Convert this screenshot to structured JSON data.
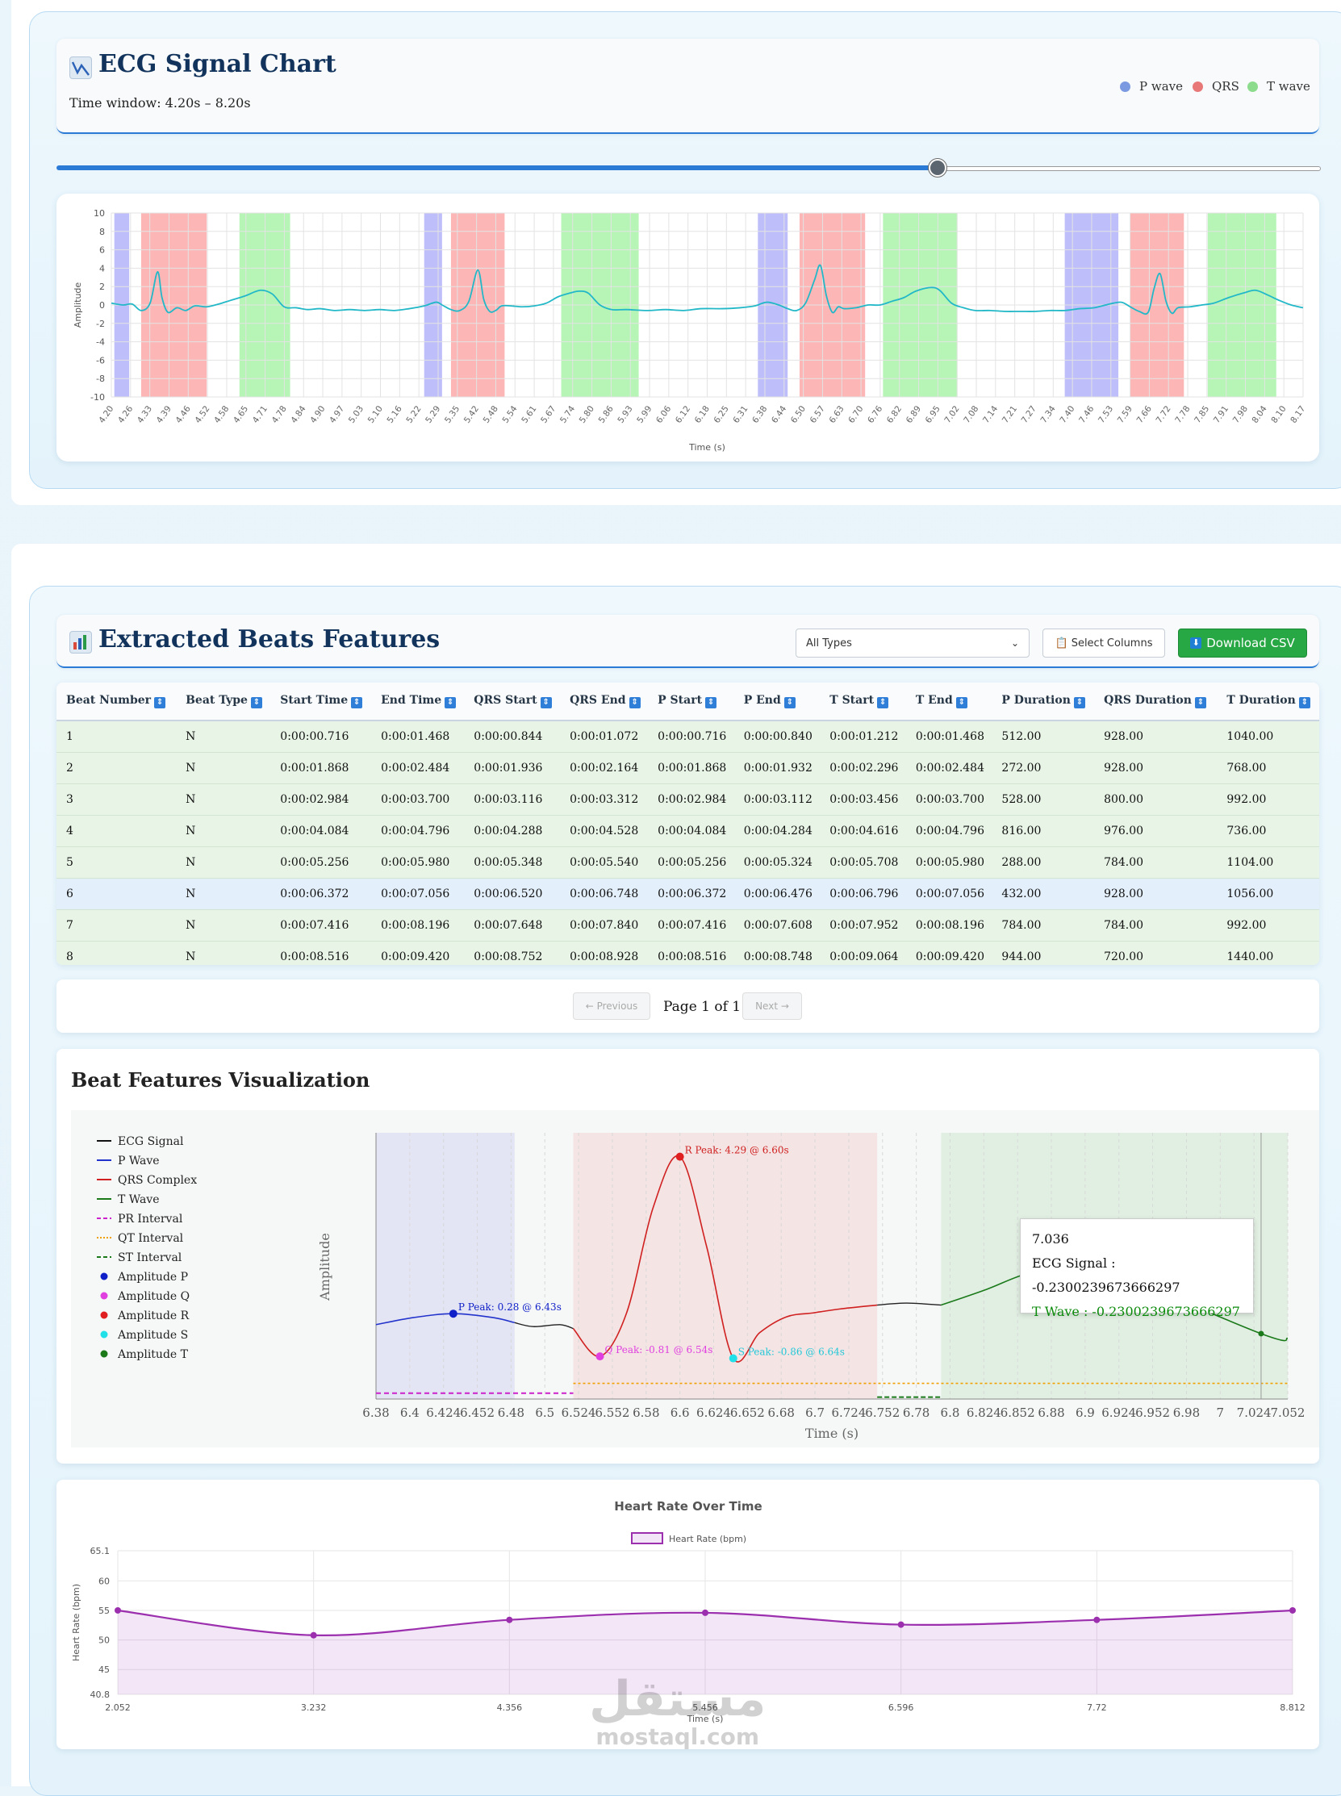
{
  "signal_section": {
    "title": "ECG Signal Chart",
    "time_window": "Time window: 4.20s – 8.20s",
    "legend": [
      {
        "label": "P wave",
        "color": "#7a99e0"
      },
      {
        "label": "QRS",
        "color": "#e87878"
      },
      {
        "label": "T wave",
        "color": "#8ddb8d"
      }
    ],
    "slider": {
      "position_fraction": 0.698
    }
  },
  "chart_data": [
    {
      "type": "line",
      "xlabel": "Time (s)",
      "ylabel": "Amplitude",
      "ylim": [
        -10,
        10
      ],
      "xlim": [
        4.2,
        8.2
      ],
      "y_ticks": [
        "10",
        "8",
        "6",
        "4",
        "2",
        "0",
        "-2",
        "-4",
        "-6",
        "-8",
        "-10"
      ],
      "x_ticks": [
        "4.20",
        "4.26",
        "4.33",
        "4.39",
        "4.46",
        "4.52",
        "4.58",
        "4.65",
        "4.71",
        "4.78",
        "4.84",
        "4.90",
        "4.97",
        "5.03",
        "5.10",
        "5.16",
        "5.22",
        "5.29",
        "5.35",
        "5.42",
        "5.48",
        "5.54",
        "5.61",
        "5.67",
        "5.74",
        "5.80",
        "5.86",
        "5.93",
        "5.99",
        "6.06",
        "6.12",
        "6.18",
        "6.25",
        "6.31",
        "6.38",
        "6.44",
        "6.50",
        "6.57",
        "6.63",
        "6.70",
        "6.76",
        "6.82",
        "6.89",
        "6.95",
        "7.02",
        "7.08",
        "7.14",
        "7.21",
        "7.27",
        "7.34",
        "7.40",
        "7.46",
        "7.53",
        "7.59",
        "7.66",
        "7.72",
        "7.78",
        "7.85",
        "7.91",
        "7.98",
        "8.04",
        "8.10",
        "8.17"
      ],
      "series": [
        {
          "x": [
            4.2,
            4.24,
            4.27,
            4.3,
            4.33,
            4.355,
            4.37,
            4.39,
            4.42,
            4.45,
            4.48,
            4.52,
            4.56,
            4.6,
            4.65,
            4.7,
            4.74,
            4.78,
            4.82,
            4.86,
            4.9,
            4.95,
            5.0,
            5.05,
            5.1,
            5.15,
            5.2,
            5.25,
            5.29,
            5.31,
            5.34,
            5.37,
            5.4,
            5.43,
            5.45,
            5.47,
            5.49,
            5.51,
            5.54,
            5.58,
            5.62,
            5.66,
            5.7,
            5.74,
            5.77,
            5.8,
            5.84,
            5.88,
            5.93,
            6.0,
            6.06,
            6.12,
            6.18,
            6.25,
            6.31,
            6.36,
            6.4,
            6.44,
            6.47,
            6.5,
            6.53,
            6.56,
            6.58,
            6.6,
            6.62,
            6.64,
            6.66,
            6.7,
            6.74,
            6.78,
            6.82,
            6.86,
            6.9,
            6.95,
            6.98,
            7.02,
            7.06,
            7.1,
            7.15,
            7.2,
            7.25,
            7.3,
            7.35,
            7.4,
            7.45,
            7.5,
            7.55,
            7.59,
            7.62,
            7.65,
            7.68,
            7.7,
            7.72,
            7.74,
            7.76,
            7.78,
            7.82,
            7.86,
            7.9,
            7.95,
            8.0,
            8.04,
            8.08,
            8.12,
            8.16,
            8.2
          ],
          "y": [
            0.2,
            0.0,
            0.1,
            -0.6,
            0.2,
            3.6,
            0.8,
            -0.8,
            -0.3,
            -0.6,
            -0.1,
            -0.2,
            0.1,
            0.5,
            1.0,
            1.6,
            1.2,
            -0.2,
            -0.3,
            -0.5,
            -0.4,
            -0.6,
            -0.5,
            -0.6,
            -0.5,
            -0.6,
            -0.4,
            -0.1,
            0.3,
            0.0,
            -0.5,
            -0.6,
            0.4,
            3.8,
            0.6,
            -0.7,
            -0.6,
            -0.1,
            -0.1,
            -0.2,
            -0.1,
            0.2,
            0.9,
            1.3,
            1.5,
            1.3,
            0.0,
            -0.5,
            -0.5,
            -0.6,
            -0.5,
            -0.6,
            -0.4,
            -0.4,
            -0.3,
            -0.1,
            0.3,
            0.0,
            -0.4,
            -0.6,
            0.2,
            2.7,
            4.3,
            1.0,
            -0.8,
            -0.2,
            -0.4,
            -0.3,
            0.0,
            0.0,
            0.4,
            0.8,
            1.5,
            1.9,
            1.6,
            0.2,
            -0.3,
            -0.6,
            -0.6,
            -0.7,
            -0.7,
            -0.7,
            -0.6,
            -0.6,
            -0.4,
            -0.3,
            0.1,
            0.3,
            -0.2,
            -0.7,
            -0.8,
            1.8,
            3.4,
            0.4,
            -0.9,
            -0.3,
            -0.2,
            0.0,
            0.2,
            0.8,
            1.3,
            1.6,
            1.1,
            0.5,
            0.0,
            -0.3
          ]
        }
      ],
      "regions": [
        {
          "kind": "P",
          "start": 4.21,
          "end": 4.26
        },
        {
          "kind": "QRS",
          "start": 4.3,
          "end": 4.52
        },
        {
          "kind": "T",
          "start": 4.63,
          "end": 4.8
        },
        {
          "kind": "P",
          "start": 5.25,
          "end": 5.31
        },
        {
          "kind": "QRS",
          "start": 5.34,
          "end": 5.52
        },
        {
          "kind": "T",
          "start": 5.71,
          "end": 5.97
        },
        {
          "kind": "P",
          "start": 6.37,
          "end": 6.47
        },
        {
          "kind": "QRS",
          "start": 6.51,
          "end": 6.73
        },
        {
          "kind": "T",
          "start": 6.79,
          "end": 7.04
        },
        {
          "kind": "P",
          "start": 7.4,
          "end": 7.58
        },
        {
          "kind": "QRS",
          "start": 7.62,
          "end": 7.8
        },
        {
          "kind": "T",
          "start": 7.88,
          "end": 8.11
        }
      ]
    },
    {
      "type": "line",
      "title": "Heart Rate Over Time",
      "xlabel": "Time (s)",
      "ylabel": "Heart Rate (bpm)",
      "ylim": [
        40.8,
        65.1
      ],
      "y_ticks": [
        "65.1",
        "60",
        "55",
        "50",
        "45",
        "40.8"
      ],
      "categories": [
        "2.052",
        "3.232",
        "4.356",
        "5.456",
        "6.596",
        "7.72",
        "8.812"
      ],
      "series": [
        {
          "name": "Heart Rate (bpm)",
          "values": [
            55.0,
            50.8,
            53.4,
            54.6,
            52.6,
            53.4,
            55.0
          ]
        }
      ]
    },
    {
      "type": "line",
      "xlabel": "Time (s)",
      "ylabel": "Amplitude",
      "x_ticks": [
        "6.38",
        "6.4",
        "6.424",
        "6.452",
        "6.48",
        "6.5",
        "6.524",
        "6.552",
        "6.58",
        "6.6",
        "6.624",
        "6.652",
        "6.68",
        "6.7",
        "6.724",
        "6.752",
        "6.78",
        "6.8",
        "6.824",
        "6.852",
        "6.88",
        "6.9",
        "6.924",
        "6.952",
        "6.98",
        "7",
        "7.024",
        "7.052"
      ],
      "xlim": [
        6.372,
        7.056
      ],
      "ylim": [
        -1.9,
        4.9
      ],
      "series": [
        {
          "name": "ECG Signal"
        },
        {
          "name": "P Wave"
        },
        {
          "name": "QRS Complex"
        },
        {
          "name": "T Wave"
        },
        {
          "name": "PR Interval"
        },
        {
          "name": "QT Interval"
        },
        {
          "name": "ST Interval"
        },
        {
          "name": "Amplitude P"
        },
        {
          "name": "Amplitude Q"
        },
        {
          "name": "Amplitude R"
        },
        {
          "name": "Amplitude S"
        },
        {
          "name": "Amplitude T"
        }
      ],
      "annotations": [
        "P Peak: 0.28 @ 6.43s",
        "Q Peak: -0.81 @ 6.54s",
        "R Peak: 4.29 @ 6.60s",
        "S Peak: -0.86 @ 6.64s"
      ]
    }
  ],
  "beats_section": {
    "title": "Extracted Beats Features",
    "type_select": {
      "value": "All Types"
    },
    "select_columns_label": "Select Columns",
    "download_label": "Download CSV",
    "columns": [
      "Beat Number",
      "Beat Type",
      "Start Time",
      "End Time",
      "QRS Start",
      "QRS End",
      "P Start",
      "P End",
      "T Start",
      "T End",
      "P Duration",
      "QRS Duration",
      "T Duration"
    ],
    "rows": [
      [
        "1",
        "N",
        "0:00:00.716",
        "0:00:01.468",
        "0:00:00.844",
        "0:00:01.072",
        "0:00:00.716",
        "0:00:00.840",
        "0:00:01.212",
        "0:00:01.468",
        "512.00",
        "928.00",
        "1040.00"
      ],
      [
        "2",
        "N",
        "0:00:01.868",
        "0:00:02.484",
        "0:00:01.936",
        "0:00:02.164",
        "0:00:01.868",
        "0:00:01.932",
        "0:00:02.296",
        "0:00:02.484",
        "272.00",
        "928.00",
        "768.00"
      ],
      [
        "3",
        "N",
        "0:00:02.984",
        "0:00:03.700",
        "0:00:03.116",
        "0:00:03.312",
        "0:00:02.984",
        "0:00:03.112",
        "0:00:03.456",
        "0:00:03.700",
        "528.00",
        "800.00",
        "992.00"
      ],
      [
        "4",
        "N",
        "0:00:04.084",
        "0:00:04.796",
        "0:00:04.288",
        "0:00:04.528",
        "0:00:04.084",
        "0:00:04.284",
        "0:00:04.616",
        "0:00:04.796",
        "816.00",
        "976.00",
        "736.00"
      ],
      [
        "5",
        "N",
        "0:00:05.256",
        "0:00:05.980",
        "0:00:05.348",
        "0:00:05.540",
        "0:00:05.256",
        "0:00:05.324",
        "0:00:05.708",
        "0:00:05.980",
        "288.00",
        "784.00",
        "1104.00"
      ],
      [
        "6",
        "N",
        "0:00:06.372",
        "0:00:07.056",
        "0:00:06.520",
        "0:00:06.748",
        "0:00:06.372",
        "0:00:06.476",
        "0:00:06.796",
        "0:00:07.056",
        "432.00",
        "928.00",
        "1056.00"
      ],
      [
        "7",
        "N",
        "0:00:07.416",
        "0:00:08.196",
        "0:00:07.648",
        "0:00:07.840",
        "0:00:07.416",
        "0:00:07.608",
        "0:00:07.952",
        "0:00:08.196",
        "784.00",
        "784.00",
        "992.00"
      ],
      [
        "8",
        "N",
        "0:00:08.516",
        "0:00:09.420",
        "0:00:08.752",
        "0:00:08.928",
        "0:00:08.516",
        "0:00:08.748",
        "0:00:09.064",
        "0:00:09.420",
        "944.00",
        "720.00",
        "1440.00"
      ]
    ],
    "pagination": {
      "prev": "← Previous",
      "page": "Page 1 of 1",
      "next": "Next →"
    }
  },
  "viz_section": {
    "title": "Beat Features Visualization",
    "tooltip": {
      "time": "7.036",
      "ecg": "ECG Signal : -0.2300239673666297",
      "t": "T Wave : -0.2300239673666297"
    }
  },
  "watermark": {
    "arabic": "مستقل",
    "latin": "mostaql.com"
  }
}
